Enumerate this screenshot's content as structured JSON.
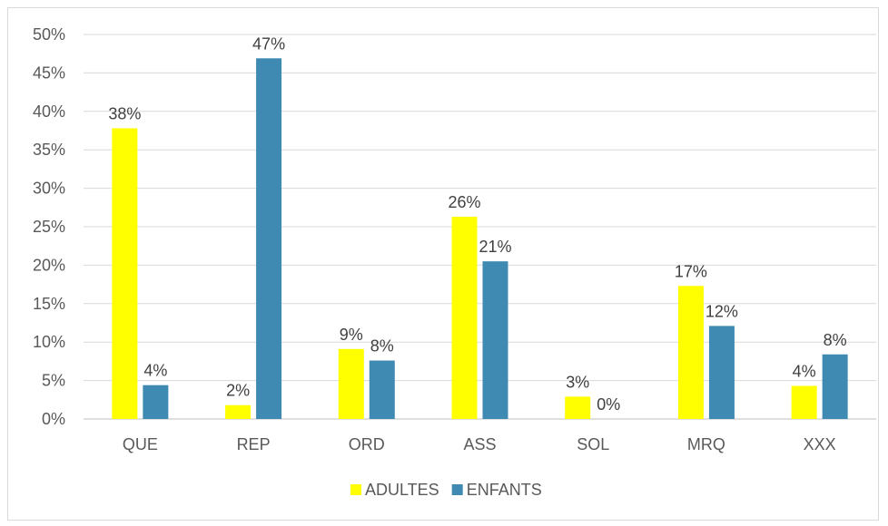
{
  "chart_data": {
    "type": "bar",
    "title": "",
    "xlabel": "",
    "ylabel": "",
    "categories": [
      "QUE",
      "REP",
      "ORD",
      "ASS",
      "SOL",
      "MRQ",
      "XXX"
    ],
    "ylim": [
      0,
      50
    ],
    "yticks": [
      "0%",
      "5%",
      "10%",
      "15%",
      "20%",
      "25%",
      "30%",
      "35%",
      "40%",
      "45%",
      "50%"
    ],
    "grid": true,
    "legend_position": "bottom",
    "series": [
      {
        "name": "ADULTES",
        "color": "#ffff00",
        "values": [
          37.8,
          1.8,
          9.1,
          26.3,
          2.9,
          17.3,
          4.3
        ],
        "labels": [
          "38%",
          "2%",
          "9%",
          "26%",
          "3%",
          "17%",
          "4%"
        ]
      },
      {
        "name": "ENFANTS",
        "color": "#3f8ab3",
        "values": [
          4.4,
          46.9,
          7.6,
          20.5,
          0,
          12.1,
          8.4
        ],
        "labels": [
          "4%",
          "47%",
          "8%",
          "21%",
          "0%",
          "12%",
          "8%"
        ]
      }
    ]
  }
}
